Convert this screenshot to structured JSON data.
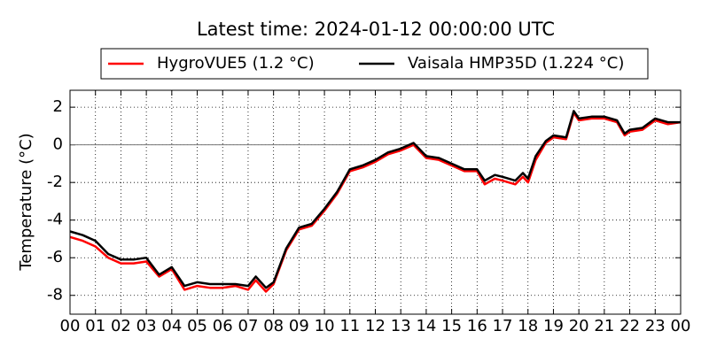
{
  "chart_data": {
    "type": "line",
    "title": "Latest time: 2024-01-12 00:00:00 UTC",
    "ylabel": "Temperature (°C)",
    "x": [
      0,
      0.5,
      1,
      1.5,
      2,
      2.5,
      3,
      3.5,
      4,
      4.5,
      5,
      5.5,
      6,
      6.5,
      7,
      7.3,
      7.7,
      8,
      8.5,
      9,
      9.5,
      10,
      10.5,
      11,
      11.5,
      12,
      12.5,
      13,
      13.5,
      14,
      14.5,
      15,
      15.5,
      16,
      16.3,
      16.7,
      17,
      17.5,
      17.8,
      18,
      18.3,
      18.7,
      19,
      19.5,
      19.8,
      20,
      20.5,
      21,
      21.5,
      21.8,
      22,
      22.5,
      23,
      23.5,
      24
    ],
    "series": [
      {
        "name": "HygroVUE5 (1.2 °C)",
        "color": "#ff0000",
        "values": [
          -4.9,
          -5.1,
          -5.4,
          -6.0,
          -6.3,
          -6.3,
          -6.2,
          -7.0,
          -6.6,
          -7.7,
          -7.5,
          -7.6,
          -7.6,
          -7.5,
          -7.7,
          -7.2,
          -7.8,
          -7.4,
          -5.6,
          -4.5,
          -4.3,
          -3.5,
          -2.6,
          -1.4,
          -1.2,
          -0.9,
          -0.5,
          -0.3,
          0.0,
          -0.7,
          -0.8,
          -1.1,
          -1.4,
          -1.4,
          -2.1,
          -1.8,
          -1.9,
          -2.1,
          -1.7,
          -2.0,
          -0.8,
          0.1,
          0.4,
          0.3,
          1.7,
          1.3,
          1.4,
          1.4,
          1.2,
          0.5,
          0.7,
          0.8,
          1.3,
          1.1,
          1.2
        ]
      },
      {
        "name": "Vaisala HMP35D (1.224 °C)",
        "color": "#000000",
        "values": [
          -4.6,
          -4.8,
          -5.1,
          -5.8,
          -6.1,
          -6.1,
          -6.0,
          -6.9,
          -6.5,
          -7.5,
          -7.3,
          -7.4,
          -7.4,
          -7.4,
          -7.5,
          -7.0,
          -7.6,
          -7.3,
          -5.5,
          -4.4,
          -4.2,
          -3.4,
          -2.5,
          -1.3,
          -1.1,
          -0.8,
          -0.4,
          -0.2,
          0.1,
          -0.6,
          -0.7,
          -1.0,
          -1.3,
          -1.3,
          -1.9,
          -1.6,
          -1.7,
          -1.9,
          -1.5,
          -1.8,
          -0.6,
          0.2,
          0.5,
          0.4,
          1.8,
          1.4,
          1.5,
          1.5,
          1.3,
          0.6,
          0.8,
          0.9,
          1.4,
          1.2,
          1.2
        ]
      }
    ],
    "xlim": [
      0,
      24
    ],
    "xticks": [
      {
        "value": 0,
        "label": "00"
      },
      {
        "value": 1,
        "label": "01"
      },
      {
        "value": 2,
        "label": "02"
      },
      {
        "value": 3,
        "label": "03"
      },
      {
        "value": 4,
        "label": "04"
      },
      {
        "value": 5,
        "label": "05"
      },
      {
        "value": 6,
        "label": "06"
      },
      {
        "value": 7,
        "label": "07"
      },
      {
        "value": 8,
        "label": "08"
      },
      {
        "value": 9,
        "label": "09"
      },
      {
        "value": 10,
        "label": "10"
      },
      {
        "value": 11,
        "label": "11"
      },
      {
        "value": 12,
        "label": "12"
      },
      {
        "value": 13,
        "label": "13"
      },
      {
        "value": 14,
        "label": "14"
      },
      {
        "value": 15,
        "label": "15"
      },
      {
        "value": 16,
        "label": "16"
      },
      {
        "value": 17,
        "label": "17"
      },
      {
        "value": 18,
        "label": "18"
      },
      {
        "value": 19,
        "label": "19"
      },
      {
        "value": 20,
        "label": "20"
      },
      {
        "value": 21,
        "label": "21"
      },
      {
        "value": 22,
        "label": "22"
      },
      {
        "value": 23,
        "label": "23"
      },
      {
        "value": 24,
        "label": "00"
      }
    ],
    "ylim": [
      -9,
      2.9
    ],
    "yticks": [
      -8,
      -6,
      -4,
      -2,
      0,
      2
    ],
    "reference_line": 0,
    "grid": true,
    "legend": "top"
  }
}
